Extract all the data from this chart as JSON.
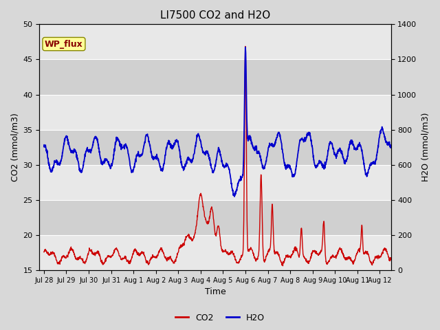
{
  "title": "LI7500 CO2 and H2O",
  "xlabel": "Time",
  "ylabel_left": "CO2 (mmol/m3)",
  "ylabel_right": "H2O (mmol/m3)",
  "xlim": [
    -0.2,
    15.5
  ],
  "ylim_left": [
    15,
    50
  ],
  "ylim_right": [
    0,
    1400
  ],
  "xtick_labels": [
    "Jul 28",
    "Jul 29",
    "Jul 30",
    "Jul 31",
    "Aug 1",
    "Aug 2",
    "Aug 3",
    "Aug 4",
    "Aug 5",
    "Aug 6",
    "Aug 7",
    "Aug 8",
    "Aug 9",
    "Aug 10",
    "Aug 11",
    "Aug 12"
  ],
  "xtick_positions": [
    0,
    1,
    2,
    3,
    4,
    5,
    6,
    7,
    8,
    9,
    10,
    11,
    12,
    13,
    14,
    15
  ],
  "yticks_left": [
    15,
    20,
    25,
    30,
    35,
    40,
    45,
    50
  ],
  "yticks_right": [
    0,
    200,
    400,
    600,
    800,
    1000,
    1200,
    1400
  ],
  "co2_color": "#cc0000",
  "h2o_color": "#0000cc",
  "background_color": "#d8d8d8",
  "plot_bg_light": "#e8e8e8",
  "plot_bg_dark": "#d0d0d0",
  "legend_box_color": "#ffff99",
  "legend_box_edge": "#888800",
  "title_fontsize": 11,
  "label_fontsize": 9,
  "tick_fontsize": 8,
  "legend_fontsize": 9,
  "annotation_text": "WP_flux",
  "annotation_fontsize": 9,
  "linewidth_co2": 1.0,
  "linewidth_h2o": 1.3,
  "band_yticks": [
    15,
    20,
    25,
    30,
    35,
    40,
    45,
    50
  ]
}
